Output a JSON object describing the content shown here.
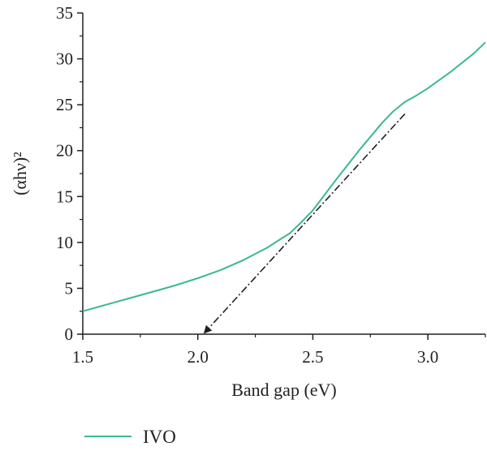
{
  "chart_data": {
    "type": "line",
    "title": "",
    "xlabel": "Band gap (eV)",
    "ylabel": "(αhν)²",
    "xlim": [
      1.5,
      3.25
    ],
    "ylim": [
      0,
      35
    ],
    "xticks": [
      1.5,
      2.0,
      2.5,
      3.0
    ],
    "xtick_labels": [
      "1.5",
      "2.0",
      "2.5",
      "3.0"
    ],
    "yticks": [
      0,
      5,
      10,
      15,
      20,
      25,
      30,
      35
    ],
    "ytick_labels": [
      "0",
      "5",
      "10",
      "15",
      "20",
      "25",
      "30",
      "35"
    ],
    "grid": false,
    "legend_position": "bottom-left",
    "series": [
      {
        "name": "IVO",
        "color": "#3cb98e",
        "x": [
          1.5,
          1.6,
          1.7,
          1.8,
          1.9,
          2.0,
          2.1,
          2.2,
          2.3,
          2.4,
          2.45,
          2.5,
          2.6,
          2.7,
          2.8,
          2.85,
          2.9,
          2.95,
          3.0,
          3.1,
          3.2,
          3.25
        ],
        "y": [
          2.5,
          3.2,
          3.9,
          4.6,
          5.3,
          6.1,
          7.0,
          8.1,
          9.4,
          11.0,
          12.2,
          13.5,
          16.8,
          20.0,
          23.0,
          24.3,
          25.3,
          26.0,
          26.8,
          28.6,
          30.6,
          31.8
        ]
      }
    ],
    "annotations": [
      {
        "type": "dash-dot-arrow",
        "color": "#231f20",
        "x": [
          2.9,
          2.03
        ],
        "y": [
          24.0,
          0
        ]
      }
    ]
  }
}
